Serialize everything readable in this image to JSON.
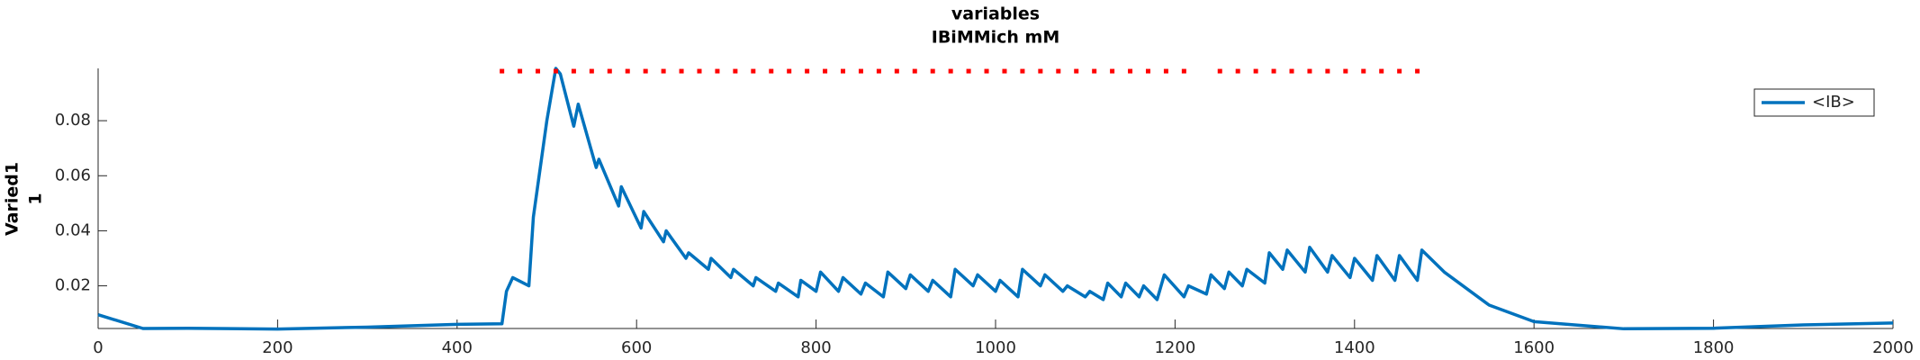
{
  "chart_data": {
    "type": "line",
    "title": "variables",
    "subtitle": "IBiMMich mM",
    "y_label": [
      "Varied1",
      "1"
    ],
    "legend": "upper right",
    "series": [
      {
        "name": "<IB>",
        "color": "#0072bd",
        "x": [
          0,
          50,
          100,
          200,
          300,
          400,
          450,
          455,
          462,
          480,
          485,
          500,
          510,
          515,
          530,
          535,
          555,
          558,
          580,
          583,
          605,
          608,
          630,
          633,
          655,
          658,
          680,
          683,
          705,
          708,
          730,
          733,
          755,
          758,
          780,
          783,
          800,
          805,
          825,
          830,
          850,
          855,
          875,
          880,
          900,
          905,
          925,
          930,
          950,
          955,
          975,
          980,
          1000,
          1005,
          1025,
          1030,
          1050,
          1055,
          1075,
          1080,
          1100,
          1105,
          1120,
          1125,
          1140,
          1145,
          1160,
          1165,
          1180,
          1188,
          1210,
          1215,
          1235,
          1240,
          1255,
          1260,
          1275,
          1280,
          1300,
          1305,
          1320,
          1325,
          1345,
          1350,
          1370,
          1375,
          1395,
          1400,
          1420,
          1425,
          1445,
          1450,
          1470,
          1475,
          1500,
          1550,
          1600,
          1700,
          1800,
          1900,
          2000
        ],
        "values": [
          0.0095,
          0.0045,
          0.0046,
          0.0043,
          0.005,
          0.006,
          0.0062,
          0.018,
          0.023,
          0.02,
          0.045,
          0.08,
          0.099,
          0.097,
          0.078,
          0.086,
          0.063,
          0.066,
          0.049,
          0.056,
          0.041,
          0.047,
          0.036,
          0.04,
          0.03,
          0.032,
          0.026,
          0.03,
          0.023,
          0.026,
          0.02,
          0.023,
          0.018,
          0.021,
          0.016,
          0.022,
          0.018,
          0.025,
          0.018,
          0.023,
          0.017,
          0.021,
          0.016,
          0.025,
          0.019,
          0.024,
          0.018,
          0.022,
          0.016,
          0.026,
          0.02,
          0.024,
          0.018,
          0.022,
          0.016,
          0.026,
          0.02,
          0.024,
          0.018,
          0.02,
          0.016,
          0.018,
          0.015,
          0.021,
          0.016,
          0.021,
          0.016,
          0.02,
          0.015,
          0.024,
          0.016,
          0.02,
          0.017,
          0.024,
          0.019,
          0.025,
          0.02,
          0.026,
          0.021,
          0.032,
          0.026,
          0.033,
          0.025,
          0.034,
          0.025,
          0.031,
          0.023,
          0.03,
          0.022,
          0.031,
          0.022,
          0.031,
          0.022,
          0.033,
          0.025,
          0.013,
          0.007,
          0.0044,
          0.0046,
          0.0058,
          0.0065
        ]
      },
      {
        "color": "#ff0000",
        "style": "dotted",
        "x": [
          450,
          470,
          490,
          510,
          530,
          550,
          570,
          590,
          610,
          630,
          650,
          670,
          690,
          710,
          730,
          750,
          770,
          790,
          810,
          830,
          850,
          870,
          890,
          910,
          930,
          950,
          970,
          990,
          1010,
          1030,
          1050,
          1070,
          1090,
          1110,
          1130,
          1150,
          1170,
          1190,
          1210,
          1250,
          1270,
          1290,
          1310,
          1330,
          1350,
          1370,
          1390,
          1410,
          1430,
          1450,
          1470
        ],
        "values": [
          0.098,
          0.098,
          0.098,
          0.098,
          0.098,
          0.098,
          0.098,
          0.098,
          0.098,
          0.098,
          0.098,
          0.098,
          0.098,
          0.098,
          0.098,
          0.098,
          0.098,
          0.098,
          0.098,
          0.098,
          0.098,
          0.098,
          0.098,
          0.098,
          0.098,
          0.098,
          0.098,
          0.098,
          0.098,
          0.098,
          0.098,
          0.098,
          0.098,
          0.098,
          0.098,
          0.098,
          0.098,
          0.098,
          0.098,
          0.098,
          0.098,
          0.098,
          0.098,
          0.098,
          0.098,
          0.098,
          0.098,
          0.098,
          0.098,
          0.098,
          0.098
        ]
      }
    ],
    "xlim": [
      0,
      2000
    ],
    "xticks": [
      0,
      200,
      400,
      600,
      800,
      1000,
      1200,
      1400,
      1600,
      1800,
      2000
    ],
    "ylim": [
      0.0045,
      0.099
    ],
    "yticks": [
      0.02,
      0.04,
      0.06,
      0.08
    ]
  }
}
